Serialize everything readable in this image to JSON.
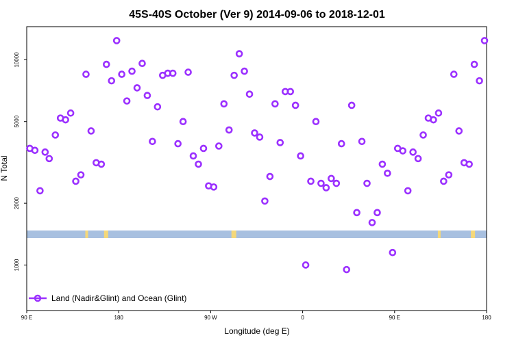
{
  "chart_data": {
    "type": "scatter",
    "title": "45S-40S October (Ver 9)   2014-09-06 to 2018-12-01",
    "xlabel": "Longitude (deg E)",
    "ylabel": "N Total",
    "x_axis": {
      "range_deg_east": [
        90,
        450
      ],
      "ticks": [
        {
          "value": 90,
          "label": "90 E"
        },
        {
          "value": 180,
          "label": "180"
        },
        {
          "value": 270,
          "label": "90 W"
        },
        {
          "value": 360,
          "label": "0"
        },
        {
          "value": 450,
          "label": "90 E"
        },
        {
          "value": 540,
          "label": "180"
        }
      ],
      "range": [
        90,
        540
      ]
    },
    "y_axis": {
      "scale": "log",
      "range": [
        600,
        14500
      ],
      "ticks": [
        {
          "value": 1000,
          "label": "1000"
        },
        {
          "value": 2000,
          "label": "2000"
        },
        {
          "value": 5000,
          "label": "5000"
        },
        {
          "value": 10000,
          "label": "10000"
        }
      ]
    },
    "grid": false,
    "legend_position": "bottom-left",
    "series": [
      {
        "name": "Land (Nadir&Glint) and Ocean (Glint)",
        "color": "#9b30ff",
        "marker": "open-circle",
        "points": [
          [
            93,
            3700
          ],
          [
            98,
            3620
          ],
          [
            103,
            2300
          ],
          [
            108,
            3550
          ],
          [
            112,
            3300
          ],
          [
            118,
            4300
          ],
          [
            123,
            5200
          ],
          [
            128,
            5100
          ],
          [
            133,
            5500
          ],
          [
            138,
            2560
          ],
          [
            143,
            2750
          ],
          [
            148,
            8500
          ],
          [
            153,
            4500
          ],
          [
            158,
            3150
          ],
          [
            163,
            3100
          ],
          [
            168,
            9500
          ],
          [
            173,
            7900
          ],
          [
            178,
            12400
          ],
          [
            183,
            8500
          ],
          [
            188,
            6300
          ],
          [
            193,
            8800
          ],
          [
            198,
            7300
          ],
          [
            203,
            9600
          ],
          [
            208,
            6700
          ],
          [
            213,
            4000
          ],
          [
            218,
            5900
          ],
          [
            223,
            8400
          ],
          [
            228,
            8600
          ],
          [
            233,
            8600
          ],
          [
            238,
            3900
          ],
          [
            243,
            5000
          ],
          [
            248,
            8700
          ],
          [
            253,
            3400
          ],
          [
            258,
            3100
          ],
          [
            263,
            3700
          ],
          [
            268,
            2430
          ],
          [
            273,
            2400
          ],
          [
            278,
            3800
          ],
          [
            283,
            6100
          ],
          [
            288,
            4550
          ],
          [
            293,
            8400
          ],
          [
            298,
            10700
          ],
          [
            303,
            8800
          ],
          [
            308,
            6800
          ],
          [
            313,
            4400
          ],
          [
            318,
            4200
          ],
          [
            323,
            2050
          ],
          [
            328,
            2700
          ],
          [
            333,
            6100
          ],
          [
            338,
            3950
          ],
          [
            343,
            7000
          ],
          [
            348,
            7000
          ],
          [
            353,
            6000
          ],
          [
            358,
            3400
          ],
          [
            363,
            1000
          ],
          [
            368,
            2560
          ],
          [
            373,
            5000
          ],
          [
            378,
            2500
          ],
          [
            383,
            2380
          ],
          [
            388,
            2640
          ],
          [
            393,
            2500
          ],
          [
            398,
            3900
          ],
          [
            403,
            950
          ],
          [
            408,
            6000
          ],
          [
            413,
            1800
          ],
          [
            418,
            4000
          ],
          [
            423,
            2500
          ],
          [
            428,
            1610
          ],
          [
            433,
            1800
          ],
          [
            438,
            3100
          ],
          [
            443,
            2800
          ],
          [
            448,
            1150
          ],
          [
            453,
            3700
          ],
          [
            458,
            3600
          ],
          [
            463,
            2300
          ],
          [
            468,
            3550
          ],
          [
            473,
            3300
          ],
          [
            478,
            4300
          ],
          [
            483,
            5200
          ],
          [
            488,
            5100
          ],
          [
            493,
            5500
          ],
          [
            498,
            2560
          ],
          [
            503,
            2750
          ],
          [
            508,
            8500
          ],
          [
            513,
            4500
          ],
          [
            518,
            3150
          ],
          [
            523,
            3100
          ],
          [
            528,
            9500
          ],
          [
            533,
            7900
          ],
          [
            538,
            12400
          ]
        ]
      }
    ]
  },
  "colors": {
    "marker": "#9b30ff",
    "ocean_band": "#a8c0e0",
    "land_band": "#f5d87a"
  }
}
